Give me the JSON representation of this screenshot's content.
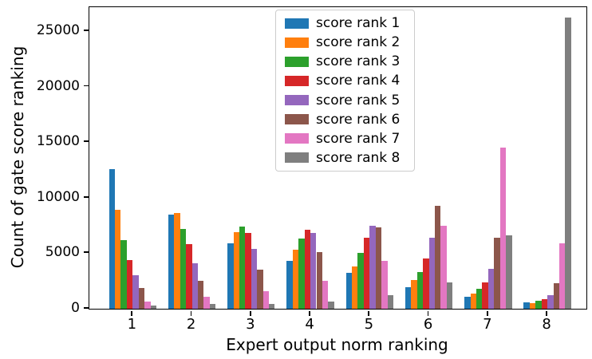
{
  "chart_data": {
    "type": "bar",
    "title": "",
    "xlabel": "Expert output norm ranking",
    "ylabel": "Count of gate score ranking",
    "categories": [
      "1",
      "2",
      "3",
      "4",
      "5",
      "6",
      "7",
      "8"
    ],
    "series": [
      {
        "name": "score rank 1",
        "color": "#1f77b4",
        "values": [
          12600,
          8500,
          5900,
          4300,
          3200,
          1950,
          1100,
          600
        ]
      },
      {
        "name": "score rank 2",
        "color": "#ff7f0e",
        "values": [
          8900,
          8650,
          6900,
          5300,
          3800,
          2600,
          1400,
          500
        ]
      },
      {
        "name": "score rank 3",
        "color": "#2ca02c",
        "values": [
          6200,
          7200,
          7400,
          6300,
          5000,
          3300,
          1800,
          700
        ]
      },
      {
        "name": "score rank 4",
        "color": "#d62728",
        "values": [
          4400,
          5800,
          6800,
          7100,
          6400,
          4500,
          2400,
          850
        ]
      },
      {
        "name": "score rank 5",
        "color": "#9467bd",
        "values": [
          3000,
          4100,
          5400,
          6800,
          7500,
          6400,
          3600,
          1200
        ]
      },
      {
        "name": "score rank 6",
        "color": "#8c564b",
        "values": [
          1900,
          2500,
          3500,
          5100,
          7300,
          9300,
          6400,
          2300
        ]
      },
      {
        "name": "score rank 7",
        "color": "#e377c2",
        "values": [
          670,
          1050,
          1550,
          2500,
          4300,
          7500,
          14500,
          5900
        ]
      },
      {
        "name": "score rank 8",
        "color": "#7f7f7f",
        "values": [
          300,
          430,
          430,
          680,
          1200,
          2400,
          6600,
          26250
        ]
      }
    ],
    "y_tick_values": [
      0,
      5000,
      10000,
      15000,
      20000,
      25000
    ],
    "y_tick_labels": [
      "0",
      "5000",
      "10000",
      "15000",
      "20000",
      "25000"
    ],
    "ylim": [
      0,
      27150
    ],
    "legend_position": "upper center",
    "grid": false
  }
}
